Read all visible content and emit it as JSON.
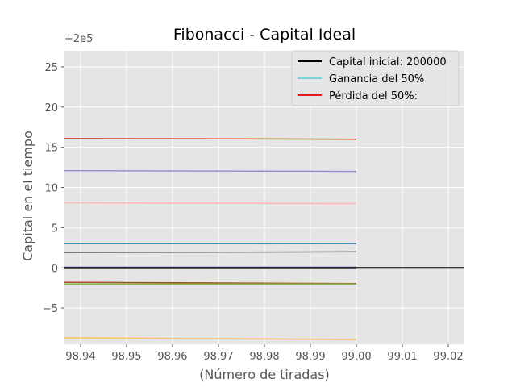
{
  "chart_data": {
    "type": "line",
    "title": "Fibonacci - Capital Ideal",
    "xlabel": "(Número de tiradas)",
    "ylabel": "Capital en el tiempo",
    "y_offset_label": "+2e5",
    "xlim": [
      98.9365,
      99.0235
    ],
    "ylim": [
      -9.5,
      27
    ],
    "x_ticks": [
      98.94,
      98.95,
      98.96,
      98.97,
      98.98,
      98.99,
      99.0,
      99.01,
      99.02
    ],
    "x_tick_labels": [
      "98.94",
      "98.95",
      "98.96",
      "98.97",
      "98.98",
      "98.99",
      "99.00",
      "99.01",
      "99.02"
    ],
    "y_ticks": [
      -5,
      0,
      5,
      10,
      15,
      20,
      25
    ],
    "y_tick_labels": [
      "−5",
      "0",
      "5",
      "10",
      "15",
      "20",
      "25"
    ],
    "grid": true,
    "background": "#e5e5e5",
    "legend_position": "upper right",
    "legend": [
      {
        "label": "Capital inicial: 200000",
        "color": "#000000"
      },
      {
        "label": "Ganancia del 50%",
        "color": "#17becf"
      },
      {
        "label": "Pérdida del 50%:",
        "color": "#e41a1c"
      }
    ],
    "series": [
      {
        "color": "#e24a33",
        "x": [
          98.9365,
          99.0
        ],
        "y": [
          16.1,
          16.0
        ]
      },
      {
        "color": "#988ed5",
        "x": [
          98.9365,
          99.0
        ],
        "y": [
          12.1,
          12.0
        ]
      },
      {
        "color": "#ffb5b8",
        "x": [
          98.9365,
          99.0
        ],
        "y": [
          8.1,
          8.0
        ]
      },
      {
        "color": "#348abd",
        "x": [
          98.9365,
          99.0
        ],
        "y": [
          3.0,
          3.0
        ]
      },
      {
        "color": "#777777",
        "x": [
          98.9365,
          99.0
        ],
        "y": [
          1.9,
          2.0
        ]
      },
      {
        "color": "#988ed5",
        "x": [
          98.9365,
          99.0
        ],
        "y": [
          0.1,
          0.1
        ]
      },
      {
        "color": "#777777",
        "x": [
          98.9365,
          99.0
        ],
        "y": [
          -0.1,
          -0.1
        ]
      },
      {
        "color": "#a0522d",
        "x": [
          98.9365,
          99.0
        ],
        "y": [
          -1.8,
          -1.95
        ]
      },
      {
        "color": "#8eba42",
        "x": [
          98.9365,
          99.0
        ],
        "y": [
          -2.0,
          -2.0
        ]
      },
      {
        "color": "#fbc15e",
        "x": [
          98.9365,
          99.0
        ],
        "y": [
          -8.7,
          -8.9
        ]
      },
      {
        "color": "#000000",
        "x": [
          98.9365,
          99.0235
        ],
        "y": [
          0.0,
          0.0
        ],
        "width": 2
      }
    ]
  }
}
